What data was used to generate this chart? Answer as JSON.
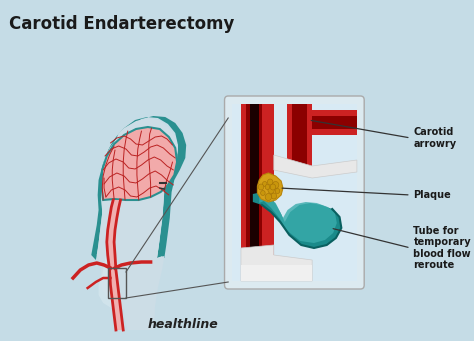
{
  "title": "Carotid Endarterectomy",
  "background_color": "#c5dce6",
  "title_color": "#1a1a1a",
  "title_fontsize": 12,
  "title_fontweight": "bold",
  "watermark": "healthline",
  "watermark_color": "#222222",
  "watermark_fontsize": 9,
  "watermark_fontweight": "bold",
  "labels": [
    "Carotid\narrowry",
    "Plaque",
    "Tube for\ntemporary\nblood flow\nreroute"
  ],
  "label_color": "#1a1a1a",
  "label_fontsize": 7.0,
  "head_fill": "#ccdde6",
  "skull_teal": "#2a9090",
  "brain_fill": "#f2aaaa",
  "brain_line_color": "#bb2222",
  "artery_red": "#cc2222",
  "artery_light": "#f0b0b0",
  "teal_tube": "#1a8a8a",
  "teal_light": "#3aacac",
  "plaque_color": "#d4a017",
  "plaque_dark": "#b8860b",
  "box_bg": "#dceaf0",
  "box_border": "#aaaaaa",
  "white_sheath": "#e8e8e8",
  "dark_lumen": "#550000"
}
